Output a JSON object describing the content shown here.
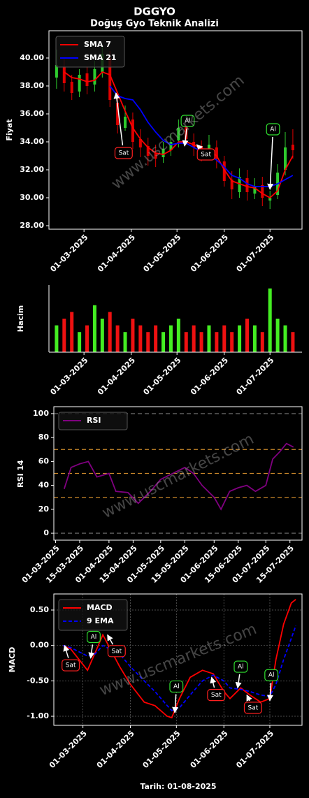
{
  "title": "DGGYO",
  "subtitle": "Doğuş Gyo Teknik Analizi",
  "footer": "Tarih: 01-08-2025",
  "watermark": "www.uscmarkets.com",
  "chart_data": [
    {
      "type": "candlestick",
      "ylabel": "Fiyat",
      "watermark": true,
      "legend": "upper left",
      "x": [
        "2025-02-11",
        "2025-02-16",
        "2025-02-21",
        "2025-02-26",
        "2025-03-03",
        "2025-03-08",
        "2025-03-13",
        "2025-03-18",
        "2025-03-23",
        "2025-03-28",
        "2025-04-02",
        "2025-04-07",
        "2025-04-12",
        "2025-04-17",
        "2025-04-22",
        "2025-04-27",
        "2025-05-02",
        "2025-05-07",
        "2025-05-12",
        "2025-05-17",
        "2025-05-22",
        "2025-05-27",
        "2025-06-01",
        "2025-06-06",
        "2025-06-11",
        "2025-06-16",
        "2025-06-21",
        "2025-06-26",
        "2025-07-01",
        "2025-07-06",
        "2025-07-11",
        "2025-07-16"
      ],
      "open": [
        38.6,
        39.4,
        38.3,
        37.6,
        38.9,
        38.1,
        39.0,
        40.0,
        36.8,
        35.0,
        35.6,
        34.2,
        33.7,
        33.2,
        32.9,
        33.4,
        34.1,
        35.1,
        34.0,
        33.7,
        33.1,
        33.6,
        32.6,
        31.3,
        30.4,
        31.4,
        30.3,
        30.9,
        29.8,
        30.2,
        32.0,
        33.8
      ],
      "high": [
        40.6,
        39.9,
        38.8,
        39.2,
        39.4,
        39.8,
        40.9,
        40.5,
        37.4,
        36.6,
        36.1,
        34.9,
        34.3,
        33.8,
        34.0,
        34.6,
        35.6,
        35.6,
        34.6,
        34.1,
        34.5,
        34.1,
        33.0,
        31.9,
        32.1,
        32.0,
        31.4,
        31.5,
        30.5,
        32.4,
        34.7,
        34.9
      ],
      "low": [
        37.8,
        37.6,
        37.0,
        37.2,
        37.4,
        37.6,
        38.6,
        36.5,
        34.6,
        34.8,
        33.5,
        32.9,
        32.3,
        32.2,
        32.5,
        33.0,
        33.6,
        33.8,
        33.0,
        32.6,
        32.7,
        32.1,
        30.8,
        29.9,
        30.0,
        29.8,
        29.9,
        29.4,
        29.2,
        29.9,
        31.6,
        32.8
      ],
      "close": [
        39.5,
        38.2,
        37.5,
        38.8,
        38.0,
        39.2,
        40.3,
        37.0,
        35.2,
        35.8,
        34.0,
        33.6,
        33.0,
        32.8,
        33.5,
        34.0,
        35.0,
        34.2,
        33.6,
        33.2,
        33.8,
        32.8,
        31.2,
        30.6,
        31.5,
        30.4,
        30.8,
        30.0,
        30.0,
        31.8,
        33.6,
        33.4
      ],
      "up_color": "#2ecc2e",
      "down_color": "#e00000",
      "series": [
        {
          "name": "SMA 7",
          "color": "#ff0000",
          "values": [
            null,
            39.0,
            38.6,
            38.5,
            38.3,
            38.4,
            39.0,
            38.8,
            37.5,
            36.2,
            35.0,
            34.2,
            33.6,
            33.2,
            33.1,
            33.4,
            34.0,
            34.0,
            33.8,
            33.5,
            33.4,
            33.0,
            32.0,
            31.2,
            31.0,
            30.8,
            30.7,
            30.3,
            30.0,
            30.5,
            32.0,
            33.0
          ]
        },
        {
          "name": "SMA 21",
          "color": "#0000ff",
          "values": [
            null,
            null,
            null,
            null,
            null,
            null,
            null,
            38.0,
            37.3,
            37.1,
            37.0,
            36.3,
            35.4,
            34.7,
            34.1,
            33.8,
            33.9,
            33.9,
            33.6,
            33.3,
            33.0,
            32.7,
            32.2,
            31.6,
            31.4,
            31.0,
            30.8,
            30.8,
            30.8,
            31.0,
            31.3,
            31.6
          ]
        }
      ],
      "annotations": [
        {
          "text": "Sat",
          "color": "#ff2020",
          "x": "2025-03-27",
          "y": 33.2,
          "target_x": "2025-03-22",
          "target_y": 37.5
        },
        {
          "text": "Al",
          "color": "#30e030",
          "x": "2025-05-08",
          "y": 35.5,
          "target_x": "2025-05-06",
          "target_y": 33.7
        },
        {
          "text": "Sat",
          "color": "#ff2020",
          "x": "2025-05-20",
          "y": 33.1,
          "target_x": "2025-05-14",
          "target_y": 33.8
        },
        {
          "text": "Al",
          "color": "#30e030",
          "x": "2025-07-03",
          "y": 34.9,
          "target_x": "2025-07-01",
          "target_y": 30.6
        }
      ],
      "xlim": [
        "2025-02-06",
        "2025-07-22"
      ],
      "xticks": [
        {
          "value": "2025-03-01",
          "label": "01-03-2025"
        },
        {
          "value": "2025-04-01",
          "label": "01-04-2025"
        },
        {
          "value": "2025-05-01",
          "label": "01-05-2025"
        },
        {
          "value": "2025-06-01",
          "label": "01-06-2025"
        },
        {
          "value": "2025-07-01",
          "label": "01-07-2025"
        }
      ],
      "ylim": [
        27.75,
        41.95
      ],
      "yticks": [
        {
          "value": 28,
          "label": "28.00"
        },
        {
          "value": 30,
          "label": "30.00"
        },
        {
          "value": 32,
          "label": "32.00"
        },
        {
          "value": 34,
          "label": "34.00"
        },
        {
          "value": 36,
          "label": "36.00"
        },
        {
          "value": 38,
          "label": "38.00"
        },
        {
          "value": 40,
          "label": "40.00"
        }
      ]
    },
    {
      "type": "bar",
      "ylabel": "Hacim",
      "x": [
        "2025-02-11",
        "2025-02-16",
        "2025-02-21",
        "2025-02-26",
        "2025-03-03",
        "2025-03-08",
        "2025-03-13",
        "2025-03-18",
        "2025-03-23",
        "2025-03-28",
        "2025-04-02",
        "2025-04-07",
        "2025-04-12",
        "2025-04-17",
        "2025-04-22",
        "2025-04-27",
        "2025-05-02",
        "2025-05-07",
        "2025-05-12",
        "2025-05-17",
        "2025-05-22",
        "2025-05-27",
        "2025-06-01",
        "2025-06-06",
        "2025-06-11",
        "2025-06-16",
        "2025-06-21",
        "2025-06-26",
        "2025-07-01",
        "2025-07-06",
        "2025-07-11",
        "2025-07-16"
      ],
      "values": [
        4,
        5,
        6,
        3,
        4,
        7,
        5,
        6,
        4,
        3,
        5,
        4,
        3,
        4,
        3,
        4,
        5,
        3,
        4,
        3,
        4,
        3,
        4,
        3,
        4,
        5,
        4,
        3,
        9.5,
        5,
        4,
        3
      ],
      "up_color": "#44ee22",
      "down_color": "#ee1111",
      "xlim": [
        "2025-02-06",
        "2025-07-22"
      ],
      "xticks": [
        {
          "value": "2025-03-01",
          "label": "01-03-2025"
        },
        {
          "value": "2025-04-01",
          "label": "01-04-2025"
        },
        {
          "value": "2025-05-01",
          "label": "01-05-2025"
        },
        {
          "value": "2025-06-01",
          "label": "01-06-2025"
        },
        {
          "value": "2025-07-01",
          "label": "01-07-2025"
        }
      ],
      "ylim": [
        0,
        10
      ]
    },
    {
      "type": "line",
      "ylabel": "RSI 14",
      "watermark": true,
      "legend": "upper left",
      "x": [
        "2025-03-06",
        "2025-03-10",
        "2025-03-15",
        "2025-03-20",
        "2025-03-25",
        "2025-04-01",
        "2025-04-05",
        "2025-04-12",
        "2025-04-18",
        "2025-04-25",
        "2025-05-01",
        "2025-05-08",
        "2025-05-15",
        "2025-05-20",
        "2025-05-25",
        "2025-06-01",
        "2025-06-05",
        "2025-06-10",
        "2025-06-15",
        "2025-06-20",
        "2025-06-25",
        "2025-07-01",
        "2025-07-05",
        "2025-07-09",
        "2025-07-13",
        "2025-07-17"
      ],
      "series": [
        {
          "name": "RSI",
          "color": "#800080",
          "values": [
            37,
            55,
            58,
            60,
            47,
            50,
            35,
            34,
            25,
            35,
            45,
            50,
            55,
            50,
            40,
            30,
            20,
            35,
            38,
            40,
            35,
            40,
            62,
            68,
            75,
            72
          ]
        }
      ],
      "levels": [
        {
          "value": 0,
          "color": "#777777"
        },
        {
          "value": 30,
          "color": "#c8862a"
        },
        {
          "value": 50,
          "color": "#c8862a"
        },
        {
          "value": 70,
          "color": "#c8862a"
        },
        {
          "value": 100,
          "color": "#777777"
        }
      ],
      "xlim": [
        "2025-02-28",
        "2025-07-22"
      ],
      "xticks": [
        {
          "value": "2025-03-01",
          "label": "01-03-2025"
        },
        {
          "value": "2025-03-15",
          "label": "15-03-2025"
        },
        {
          "value": "2025-04-01",
          "label": "01-04-2025"
        },
        {
          "value": "2025-04-15",
          "label": "15-04-2025"
        },
        {
          "value": "2025-05-01",
          "label": "01-05-2025"
        },
        {
          "value": "2025-05-15",
          "label": "15-05-2025"
        },
        {
          "value": "2025-06-01",
          "label": "01-06-2025"
        },
        {
          "value": "2025-06-15",
          "label": "15-06-2025"
        },
        {
          "value": "2025-07-01",
          "label": "01-07-2025"
        },
        {
          "value": "2025-07-15",
          "label": "15-07-2025"
        }
      ],
      "ylim": [
        -5.8,
        105.8
      ],
      "yticks": [
        0,
        20,
        40,
        60,
        80,
        100
      ]
    },
    {
      "type": "line",
      "ylabel": "MACD",
      "watermark": true,
      "legend": "upper left",
      "grid": true,
      "x": [
        "2025-02-16",
        "2025-02-21",
        "2025-03-04",
        "2025-03-09",
        "2025-03-14",
        "2025-03-25",
        "2025-04-01",
        "2025-04-10",
        "2025-04-17",
        "2025-04-25",
        "2025-04-28",
        "2025-05-03",
        "2025-05-10",
        "2025-05-18",
        "2025-05-25",
        "2025-06-01",
        "2025-06-05",
        "2025-06-12",
        "2025-06-18",
        "2025-06-25",
        "2025-07-01",
        "2025-07-05",
        "2025-07-10",
        "2025-07-15",
        "2025-07-18"
      ],
      "series": [
        {
          "name": "MACD",
          "color": "#ff0000",
          "values": [
            0.0,
            -0.05,
            -0.35,
            -0.1,
            0.15,
            -0.3,
            -0.55,
            -0.8,
            -0.85,
            -1.0,
            -1.02,
            -0.75,
            -0.45,
            -0.35,
            -0.4,
            -0.65,
            -0.75,
            -0.6,
            -0.7,
            -0.8,
            -0.75,
            -0.2,
            0.3,
            0.6,
            0.65
          ]
        },
        {
          "name": "9 EMA",
          "color": "#0000ff",
          "dash": true,
          "values": [
            0.0,
            -0.03,
            -0.15,
            -0.12,
            0.0,
            -0.12,
            -0.3,
            -0.5,
            -0.65,
            -0.85,
            -0.92,
            -0.88,
            -0.7,
            -0.5,
            -0.42,
            -0.5,
            -0.6,
            -0.62,
            -0.65,
            -0.7,
            -0.72,
            -0.55,
            -0.2,
            0.1,
            0.28
          ]
        }
      ],
      "annotations": [
        {
          "text": "Sat",
          "color": "#ff2020",
          "x": "2025-02-21",
          "y": -0.28,
          "target_x": "2025-02-17",
          "target_y": 0.0
        },
        {
          "text": "Al",
          "color": "#30e030",
          "x": "2025-03-08",
          "y": 0.12,
          "target_x": "2025-03-06",
          "target_y": -0.18
        },
        {
          "text": "Sat",
          "color": "#ff2020",
          "x": "2025-03-23",
          "y": -0.08,
          "target_x": "2025-03-17",
          "target_y": 0.15
        },
        {
          "text": "Al",
          "color": "#30e030",
          "x": "2025-05-01",
          "y": -0.58,
          "target_x": "2025-04-30",
          "target_y": -0.95
        },
        {
          "text": "Sat",
          "color": "#ff2020",
          "x": "2025-05-27",
          "y": -0.7,
          "target_x": "2025-05-24",
          "target_y": -0.45
        },
        {
          "text": "Al",
          "color": "#30e030",
          "x": "2025-06-12",
          "y": -0.3,
          "target_x": "2025-06-10",
          "target_y": -0.6
        },
        {
          "text": "Sat",
          "color": "#ff2020",
          "x": "2025-06-20",
          "y": -0.88,
          "target_x": "2025-06-16",
          "target_y": -0.7
        },
        {
          "text": "Al",
          "color": "#30e030",
          "x": "2025-07-02",
          "y": -0.42,
          "target_x": "2025-07-01",
          "target_y": -0.78
        }
      ],
      "xlim": [
        "2025-02-10",
        "2025-07-22"
      ],
      "xticks": [
        {
          "value": "2025-03-01",
          "label": "01-03-2025"
        },
        {
          "value": "2025-04-01",
          "label": "01-04-2025"
        },
        {
          "value": "2025-05-01",
          "label": "01-05-2025"
        },
        {
          "value": "2025-06-01",
          "label": "01-06-2025"
        },
        {
          "value": "2025-07-01",
          "label": "01-07-2025"
        }
      ],
      "ylim": [
        -1.128,
        0.727
      ],
      "yticks": [
        {
          "value": -1,
          "label": "-1.00"
        },
        {
          "value": -0.5,
          "label": "-0.50"
        },
        {
          "value": 0,
          "label": "0.00"
        },
        {
          "value": 0.5,
          "label": "0.50"
        }
      ]
    }
  ]
}
